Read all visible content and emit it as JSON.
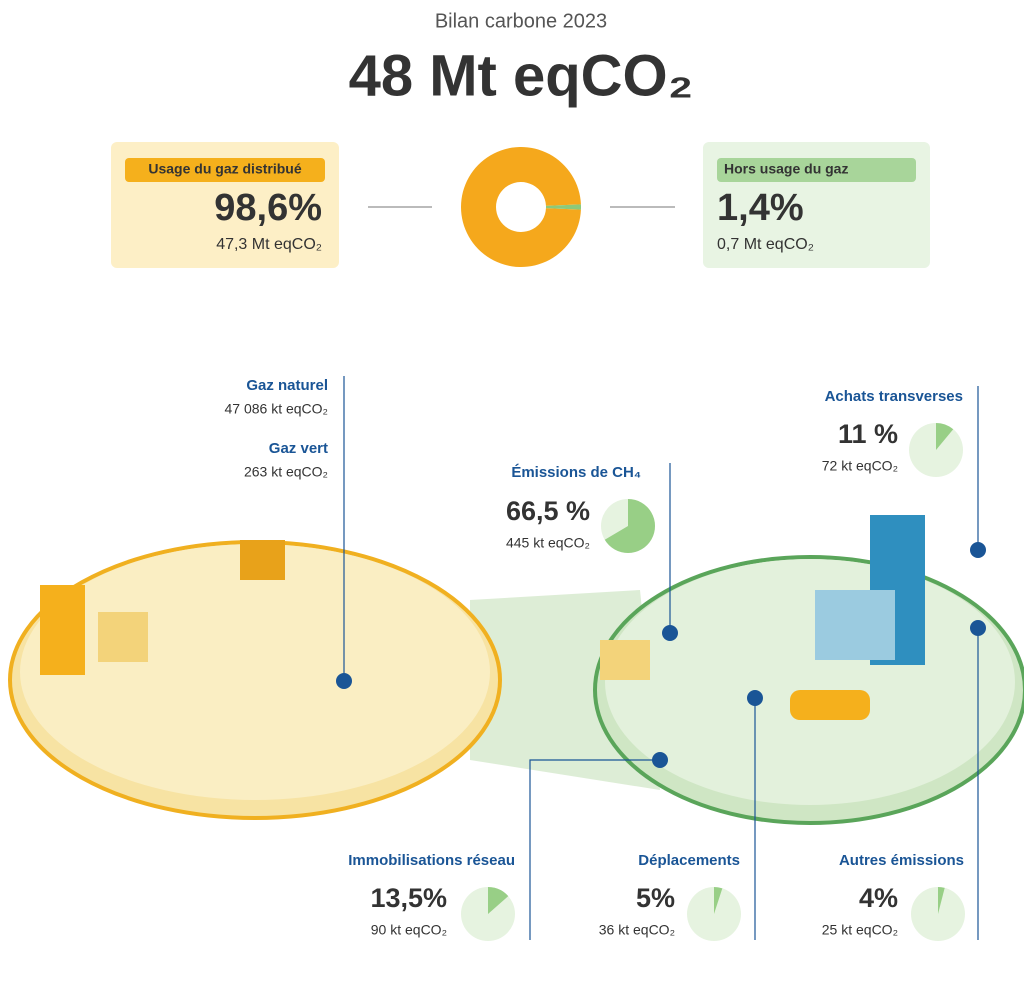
{
  "header": {
    "subtitle": "Bilan carbone 2023",
    "title": "48 Mt eqCO₂"
  },
  "split": [
    {
      "label": "Usage du gaz distribué",
      "value": 98.6,
      "value_label": "98,6%",
      "amount": "47,3 Mt eqCO₂",
      "color": "#f5a81c"
    },
    {
      "label": "Hors usage du gaz",
      "value": 1.4,
      "value_label": "1,4%",
      "amount": "0,7 Mt eqCO₂",
      "color": "#8cc97a"
    }
  ],
  "sources": [
    {
      "name": "Gaz naturel",
      "amount": "47 086 kt eqCO₂"
    },
    {
      "name": "Gaz vert",
      "amount": "263 kt eqCO₂"
    }
  ],
  "callouts": [
    {
      "title": "Émissions de CH₄",
      "value": 66.5,
      "value_label": "66,5 %",
      "amount": "445 kt eqCO₂"
    },
    {
      "title": "Achats transverses",
      "value": 11,
      "value_label": "11 %",
      "amount": "72 kt eqCO₂"
    },
    {
      "title": "Immobilisations réseau",
      "value": 13.5,
      "value_label": "13,5%",
      "amount": "90 kt eqCO₂"
    },
    {
      "title": "Déplacements",
      "value": 5,
      "value_label": "5%",
      "amount": "36 kt eqCO₂"
    },
    {
      "title": "Autres émissions",
      "value": 4,
      "value_label": "4%",
      "amount": "25 kt eqCO₂"
    }
  ]
}
